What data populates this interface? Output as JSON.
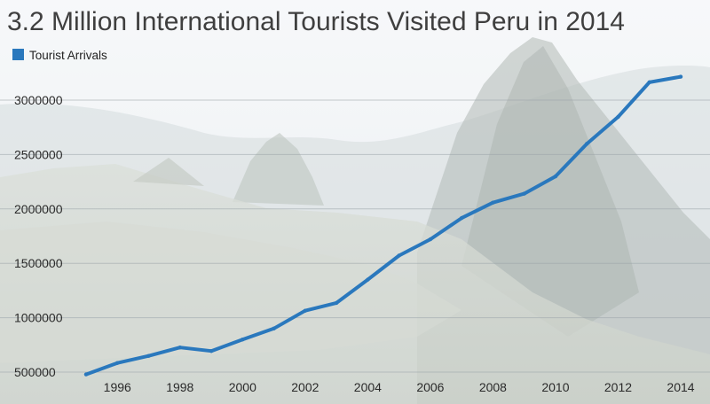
{
  "chart_data": {
    "type": "line",
    "title": "3.2 Million International Tourists Visited Peru in 2014",
    "xlabel": "",
    "ylabel": "",
    "x": [
      1995,
      1996,
      1997,
      1998,
      1999,
      2000,
      2001,
      2002,
      2003,
      2004,
      2005,
      2006,
      2007,
      2008,
      2009,
      2010,
      2011,
      2012,
      2013,
      2014
    ],
    "x_tick_labels": [
      "1996",
      "1998",
      "2000",
      "2002",
      "2004",
      "2006",
      "2008",
      "2010",
      "2012",
      "2014"
    ],
    "y_tick_labels": [
      "500000",
      "1000000",
      "1500000",
      "2000000",
      "2500000",
      "3000000"
    ],
    "ylim": [
      500000,
      3000000
    ],
    "xlim": [
      1995,
      2014
    ],
    "grid": true,
    "legend_position": "top-left",
    "series": [
      {
        "name": "Tourist Arrivals",
        "color": "#2a78bd",
        "values": [
          479000,
          584000,
          649000,
          726000,
          694000,
          800000,
          901000,
          1064000,
          1136000,
          1350000,
          1571000,
          1721000,
          1916000,
          2058000,
          2140000,
          2299000,
          2598000,
          2846000,
          3164000,
          3215000
        ]
      }
    ],
    "background": "photograph of Machu Picchu with Huayna Picchu peak, faded"
  }
}
